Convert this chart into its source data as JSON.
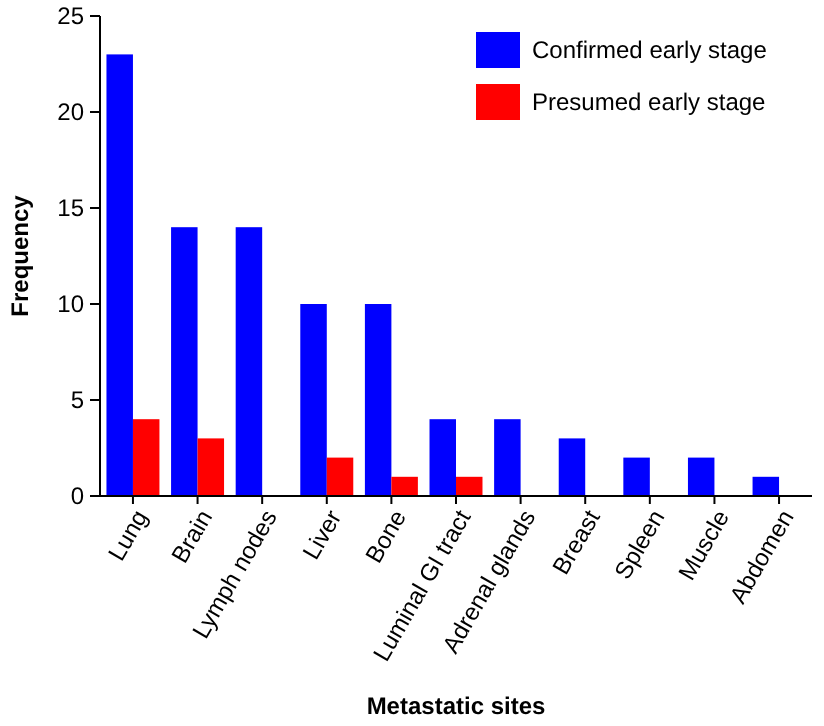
{
  "chart_data": {
    "type": "bar",
    "xlabel": "Metastatic sites",
    "ylabel": "Frequency",
    "categories": [
      "Lung",
      "Brain",
      "Lymph nodes",
      "Liver",
      "Bone",
      "Luminal GI tract",
      "Adrenal glands",
      "Breast",
      "Spleen",
      "Muscle",
      "Abdomen"
    ],
    "series": [
      {
        "name": "Confirmed early stage",
        "color": "#0000ff",
        "values": [
          23,
          14,
          14,
          10,
          10,
          4,
          4,
          3,
          2,
          2,
          1
        ]
      },
      {
        "name": "Presumed early stage",
        "color": "#ff0000",
        "values": [
          4,
          3,
          0,
          2,
          1,
          1,
          0,
          0,
          0,
          0,
          0
        ]
      }
    ],
    "ylim": [
      0,
      25
    ],
    "yticks": [
      0,
      5,
      10,
      15,
      20,
      25
    ],
    "legend": "top right",
    "grid": false
  }
}
